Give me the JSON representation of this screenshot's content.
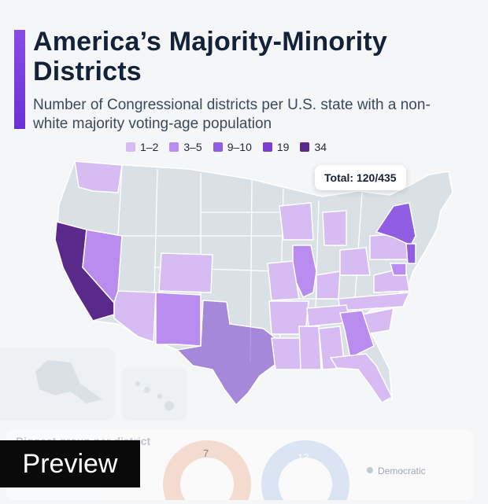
{
  "header": {
    "title": "America’s Majority-Minority Districts",
    "subtitle": "Number of Congressional districts per U.S. state with a non-white majority voting-age population"
  },
  "legend": [
    {
      "label": "1–2",
      "color": "#d6bcf2"
    },
    {
      "label": "3–5",
      "color": "#b98cf0"
    },
    {
      "label": "9–10",
      "color": "#8f5ee3"
    },
    {
      "label": "19",
      "color": "#7a3fcf"
    },
    {
      "label": "34",
      "color": "#5a2a8a"
    }
  ],
  "badge": {
    "total": "Total: 120/435"
  },
  "map": {
    "none_color": "#d9e1e6",
    "states": {
      "CA": "34",
      "TX": "19",
      "NY": "9–10",
      "IL": "3–5",
      "NV": "3–5",
      "NM": "3–5",
      "WA": "1–2",
      "CO": "1–2",
      "AZ": "1–2",
      "GA": "3–5",
      "FL": "1–2"
    }
  },
  "bottom": {
    "title": "Biggest group per district",
    "donut1_value": "7",
    "donut2_value": "13",
    "legend_party": "Democratic"
  },
  "preview_label": "Preview"
}
